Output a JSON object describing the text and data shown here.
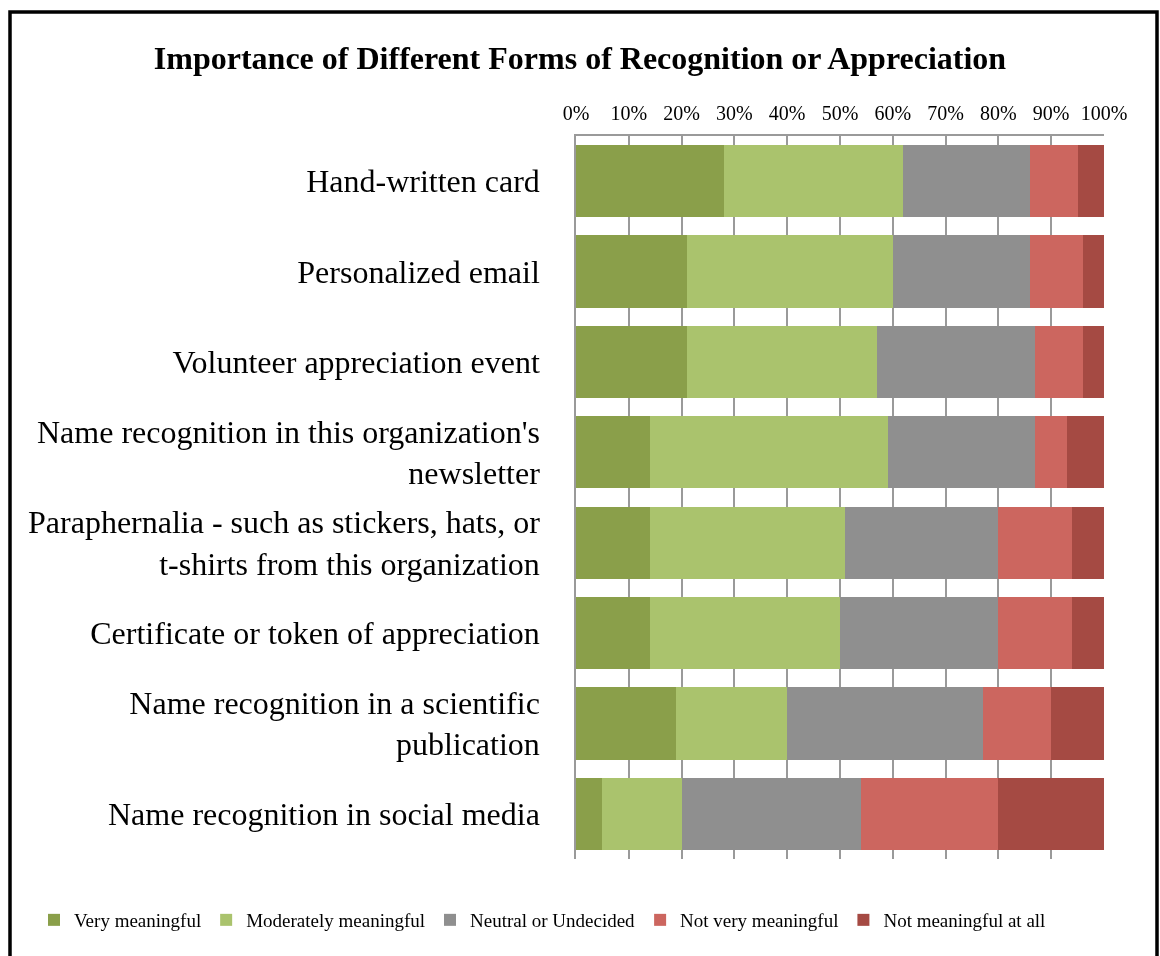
{
  "chart_data": {
    "type": "bar",
    "title": "Importance of Different Forms of Recognition or Appreciation",
    "orientation": "horizontal",
    "stacked": true,
    "categories": [
      "Hand-written card",
      "Personalized email",
      "Volunteer appreciation event",
      "Name recognition in this organization's newsletter",
      "Paraphernalia - such as stickers, hats, or t-shirts from this organization",
      "Certificate or token of appreciation",
      "Name recognition in a scientific publication",
      "Name recognition in social media"
    ],
    "series": [
      {
        "name": "Very meaningful",
        "color": "#8a9f4a",
        "values": [
          28,
          21,
          21,
          14,
          14,
          14,
          19,
          5
        ]
      },
      {
        "name": "Moderately meaningful",
        "color": "#aac36d",
        "values": [
          34,
          39,
          36,
          45,
          37,
          36,
          21,
          15
        ]
      },
      {
        "name": "Neutral or Undecided",
        "color": "#8f8f8f",
        "values": [
          24,
          26,
          30,
          28,
          29,
          30,
          37,
          34
        ]
      },
      {
        "name": "Not very meaningful",
        "color": "#cc665f",
        "values": [
          9,
          10,
          9,
          6,
          14,
          14,
          13,
          26
        ]
      },
      {
        "name": "Not meaningful at all",
        "color": "#a54a43",
        "values": [
          5,
          4,
          4,
          7,
          6,
          6,
          10,
          20
        ]
      }
    ],
    "xlim": [
      0,
      100
    ],
    "xticks": [
      {
        "value": 0,
        "label": "0%"
      },
      {
        "value": 10,
        "label": "10%"
      },
      {
        "value": 20,
        "label": "20%"
      },
      {
        "value": 30,
        "label": "30%"
      },
      {
        "value": 40,
        "label": "40%"
      },
      {
        "value": 50,
        "label": "50%"
      },
      {
        "value": 60,
        "label": "60%"
      },
      {
        "value": 70,
        "label": "70%"
      },
      {
        "value": 80,
        "label": "80%"
      },
      {
        "value": 90,
        "label": "90%"
      },
      {
        "value": 100,
        "label": "100%"
      }
    ],
    "grid": "x",
    "legend": "bottom"
  }
}
